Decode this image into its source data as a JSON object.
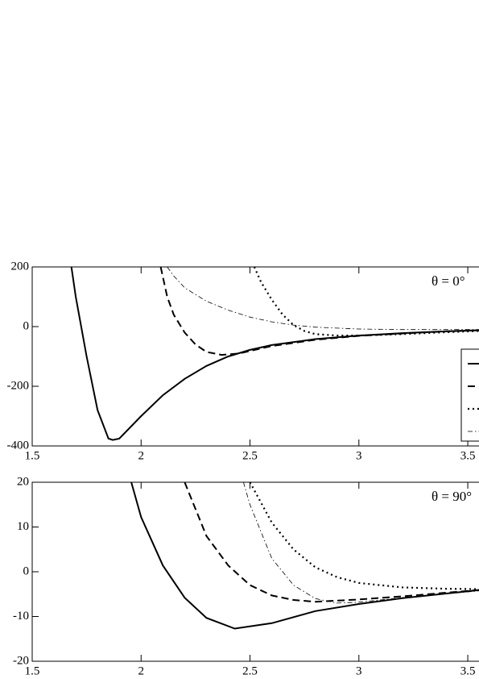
{
  "chart_data": [
    {
      "type": "line",
      "annotation": "θ = 0°",
      "xlim": [
        1.5,
        3.57
      ],
      "ylim": [
        -400,
        200
      ],
      "xticks": [
        1.5,
        2,
        2.5,
        3,
        3.5
      ],
      "yticks": [
        -400,
        -200,
        0,
        200
      ],
      "legend": true,
      "legend_corner": "right",
      "series": [
        {
          "style": "solid",
          "color": "#000000",
          "x": [
            1.68,
            1.7,
            1.72,
            1.75,
            1.8,
            1.85,
            1.87,
            1.9,
            2.0,
            2.1,
            2.2,
            2.3,
            2.4,
            2.5,
            2.6,
            2.8,
            3.0,
            3.2,
            3.4,
            3.57
          ],
          "values": [
            200,
            100,
            20,
            -100,
            -280,
            -375,
            -380,
            -375,
            -300,
            -230,
            -175,
            -132,
            -100,
            -78,
            -62,
            -42,
            -30,
            -22,
            -16,
            -12
          ]
        },
        {
          "style": "dashed",
          "color": "#000000",
          "x": [
            2.09,
            2.12,
            2.15,
            2.2,
            2.25,
            2.3,
            2.37,
            2.45,
            2.5,
            2.6,
            2.8,
            3.0,
            3.2,
            3.4,
            3.57
          ],
          "values": [
            200,
            100,
            40,
            -20,
            -60,
            -85,
            -95,
            -90,
            -82,
            -65,
            -44,
            -31,
            -23,
            -16,
            -12
          ]
        },
        {
          "style": "dotted",
          "color": "#000000",
          "x": [
            2.52,
            2.55,
            2.6,
            2.65,
            2.7,
            2.75,
            2.8,
            2.9,
            3.0,
            3.2,
            3.4,
            3.57
          ],
          "values": [
            200,
            150,
            90,
            40,
            5,
            -15,
            -25,
            -30,
            -30,
            -25,
            -19,
            -14
          ]
        },
        {
          "style": "dashdot",
          "color": "#000000",
          "x": [
            2.12,
            2.15,
            2.2,
            2.3,
            2.4,
            2.5,
            2.6,
            2.7,
            2.8,
            3.0,
            3.2,
            3.57
          ],
          "values": [
            200,
            170,
            130,
            85,
            55,
            32,
            16,
            5,
            -2,
            -8,
            -10,
            -10
          ]
        }
      ]
    },
    {
      "type": "line",
      "annotation": "θ = 90°",
      "xlim": [
        1.5,
        3.57
      ],
      "ylim": [
        -20,
        20
      ],
      "xticks": [
        1.5,
        2,
        2.5,
        3,
        3.5
      ],
      "yticks": [
        -20,
        -10,
        0,
        10,
        20
      ],
      "legend": false,
      "series": [
        {
          "style": "solid",
          "color": "#000000",
          "x": [
            1.955,
            2.0,
            2.1,
            2.2,
            2.3,
            2.43,
            2.6,
            2.8,
            3.0,
            3.2,
            3.57
          ],
          "values": [
            20,
            12.2,
            1.4,
            -5.8,
            -10.3,
            -12.7,
            -11.5,
            -8.8,
            -7.2,
            -5.9,
            -4.0
          ]
        },
        {
          "style": "dashed",
          "color": "#000000",
          "x": [
            2.2,
            2.3,
            2.4,
            2.5,
            2.6,
            2.7,
            2.8,
            3.0,
            3.2,
            3.57
          ],
          "values": [
            20,
            8,
            1.4,
            -3,
            -5.3,
            -6.3,
            -6.7,
            -6.2,
            -5.5,
            -4.0
          ]
        },
        {
          "style": "dotted",
          "color": "#000000",
          "x": [
            2.5,
            2.6,
            2.7,
            2.8,
            2.9,
            3.0,
            3.2,
            3.4,
            3.57
          ],
          "values": [
            20,
            11,
            5,
            1,
            -1.2,
            -2.5,
            -3.5,
            -3.8,
            -3.9
          ]
        },
        {
          "style": "dashdot",
          "color": "#000000",
          "x": [
            2.47,
            2.5,
            2.6,
            2.7,
            2.8,
            2.9,
            3.0,
            3.2,
            3.57
          ],
          "values": [
            20,
            15,
            3,
            -3,
            -6,
            -7,
            -6.8,
            -5.8,
            -4.2
          ]
        }
      ]
    }
  ]
}
